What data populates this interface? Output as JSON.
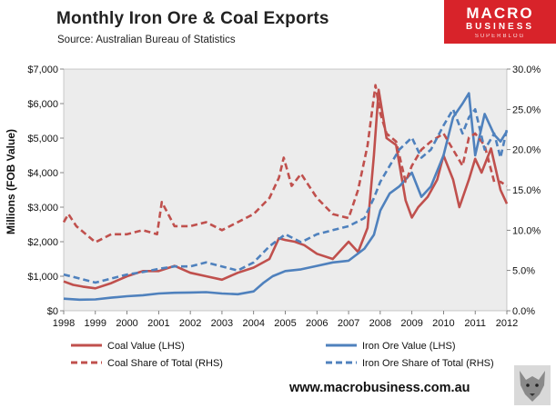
{
  "header": {
    "title": "Monthly Iron Ore & Coal Exports",
    "source": "Source:  Australian Bureau of Statistics",
    "logo_line1": "MACRO",
    "logo_line2": "BUSINESS",
    "logo_line3": "SUPERBLOG",
    "website": "www.macrobusiness.com.au"
  },
  "colors": {
    "coal": "#c0504d",
    "iron": "#4f81bd",
    "plot_bg": "#ececec",
    "logo": "#d8232a"
  },
  "chart_data": {
    "type": "line",
    "ylabel": "Millions (FOB Value)",
    "x_ticks": [
      "1998",
      "1999",
      "2000",
      "2001",
      "2002",
      "2003",
      "2004",
      "2005",
      "2006",
      "2007",
      "2008",
      "2009",
      "2010",
      "2011",
      "2012"
    ],
    "y_left_ticks": [
      "$0",
      "$1,000",
      "$2,000",
      "$3,000",
      "$4,000",
      "$5,000",
      "$6,000",
      "$7,000"
    ],
    "y_right_ticks": [
      "0.0%",
      "5.0%",
      "10.0%",
      "15.0%",
      "20.0%",
      "25.0%",
      "30.0%"
    ],
    "ylim_left": [
      0,
      7000
    ],
    "ylim_right": [
      0,
      30
    ],
    "xlim": [
      1998,
      2012
    ],
    "series": [
      {
        "name": "Coal Value (LHS)",
        "axis": "left",
        "style": "solid",
        "color": "coal",
        "x": [
          1998.0,
          1998.3,
          1998.6,
          1999.0,
          1999.5,
          2000.0,
          2000.5,
          2001.0,
          2001.5,
          2002.0,
          2002.5,
          2003.0,
          2003.5,
          2004.0,
          2004.5,
          2004.8,
          2005.0,
          2005.3,
          2005.6,
          2006.0,
          2006.5,
          2007.0,
          2007.3,
          2007.6,
          2007.8,
          2007.95,
          2008.2,
          2008.5,
          2008.8,
          2009.0,
          2009.2,
          2009.5,
          2009.8,
          2010.0,
          2010.3,
          2010.5,
          2010.8,
          2011.0,
          2011.2,
          2011.5,
          2011.8,
          2012.0
        ],
        "y": [
          850,
          750,
          700,
          650,
          800,
          1000,
          1150,
          1150,
          1300,
          1100,
          1000,
          900,
          1100,
          1250,
          1500,
          2100,
          2050,
          2000,
          1900,
          1650,
          1500,
          2000,
          1700,
          2400,
          4500,
          6400,
          5000,
          4800,
          3200,
          2700,
          3000,
          3300,
          3800,
          4500,
          3800,
          3000,
          3800,
          4400,
          4000,
          4700,
          3500,
          3100
        ]
      },
      {
        "name": "Iron Ore Value (LHS)",
        "axis": "left",
        "style": "solid",
        "color": "iron",
        "x": [
          1998.0,
          1998.5,
          1999.0,
          1999.5,
          2000.0,
          2000.5,
          2001.0,
          2001.5,
          2002.0,
          2002.5,
          2003.0,
          2003.5,
          2004.0,
          2004.3,
          2004.6,
          2005.0,
          2005.5,
          2006.0,
          2006.5,
          2007.0,
          2007.5,
          2007.8,
          2008.0,
          2008.3,
          2008.6,
          2009.0,
          2009.3,
          2009.6,
          2010.0,
          2010.3,
          2010.6,
          2010.8,
          2011.0,
          2011.3,
          2011.6,
          2011.8,
          2012.0
        ],
        "y": [
          350,
          320,
          330,
          380,
          420,
          450,
          500,
          520,
          530,
          540,
          500,
          480,
          560,
          800,
          1000,
          1150,
          1200,
          1300,
          1400,
          1450,
          1800,
          2200,
          2900,
          3400,
          3600,
          4000,
          3300,
          3600,
          4500,
          5600,
          6000,
          6300,
          4500,
          5700,
          5100,
          4900,
          5200
        ]
      },
      {
        "name": "Coal Share of Total (RHS)",
        "axis": "right",
        "style": "dashed",
        "color": "coal",
        "x": [
          1998.0,
          1998.15,
          1998.4,
          1999.0,
          1999.5,
          2000.0,
          2000.5,
          2000.95,
          2001.1,
          2001.5,
          2002.0,
          2002.5,
          2003.0,
          2003.5,
          2004.0,
          2004.5,
          2004.8,
          2004.95,
          2005.2,
          2005.5,
          2006.0,
          2006.5,
          2007.0,
          2007.3,
          2007.6,
          2007.85,
          2008.0,
          2008.2,
          2008.5,
          2008.8,
          2009.0,
          2009.3,
          2009.6,
          2010.0,
          2010.3,
          2010.6,
          2010.8,
          2011.0,
          2011.3,
          2011.6,
          2011.8,
          2012.0
        ],
        "y": [
          11.0,
          12.0,
          10.5,
          8.5,
          9.5,
          9.5,
          10.0,
          9.5,
          13.5,
          10.5,
          10.5,
          11.0,
          10.0,
          11.0,
          12.0,
          14.0,
          16.5,
          19.0,
          15.5,
          17.0,
          14.0,
          12.0,
          11.5,
          15.0,
          20.5,
          28.0,
          24.5,
          22.0,
          21.0,
          16.0,
          18.0,
          20.0,
          21.0,
          22.0,
          20.0,
          18.0,
          21.5,
          22.0,
          20.5,
          16.0,
          16.0,
          15.5
        ]
      },
      {
        "name": "Iron Ore Share of Total (RHS)",
        "axis": "right",
        "style": "dashed",
        "color": "iron",
        "x": [
          1998.0,
          1998.5,
          1999.0,
          1999.5,
          2000.0,
          2000.5,
          2001.0,
          2001.5,
          2002.0,
          2002.5,
          2003.0,
          2003.5,
          2004.0,
          2004.5,
          2005.0,
          2005.5,
          2006.0,
          2006.5,
          2007.0,
          2007.5,
          2007.8,
          2008.0,
          2008.3,
          2008.6,
          2009.0,
          2009.3,
          2009.6,
          2010.0,
          2010.3,
          2010.6,
          2010.8,
          2011.0,
          2011.3,
          2011.6,
          2011.8,
          2012.0
        ],
        "y": [
          4.5,
          4.0,
          3.5,
          4.0,
          4.5,
          4.8,
          5.2,
          5.5,
          5.5,
          6.0,
          5.5,
          5.0,
          6.0,
          8.0,
          9.5,
          8.5,
          9.5,
          10.0,
          10.5,
          11.5,
          14.0,
          16.0,
          18.0,
          20.0,
          21.5,
          19.0,
          20.0,
          23.0,
          25.0,
          22.0,
          24.0,
          25.0,
          20.0,
          22.0,
          19.0,
          22.5
        ]
      }
    ]
  }
}
